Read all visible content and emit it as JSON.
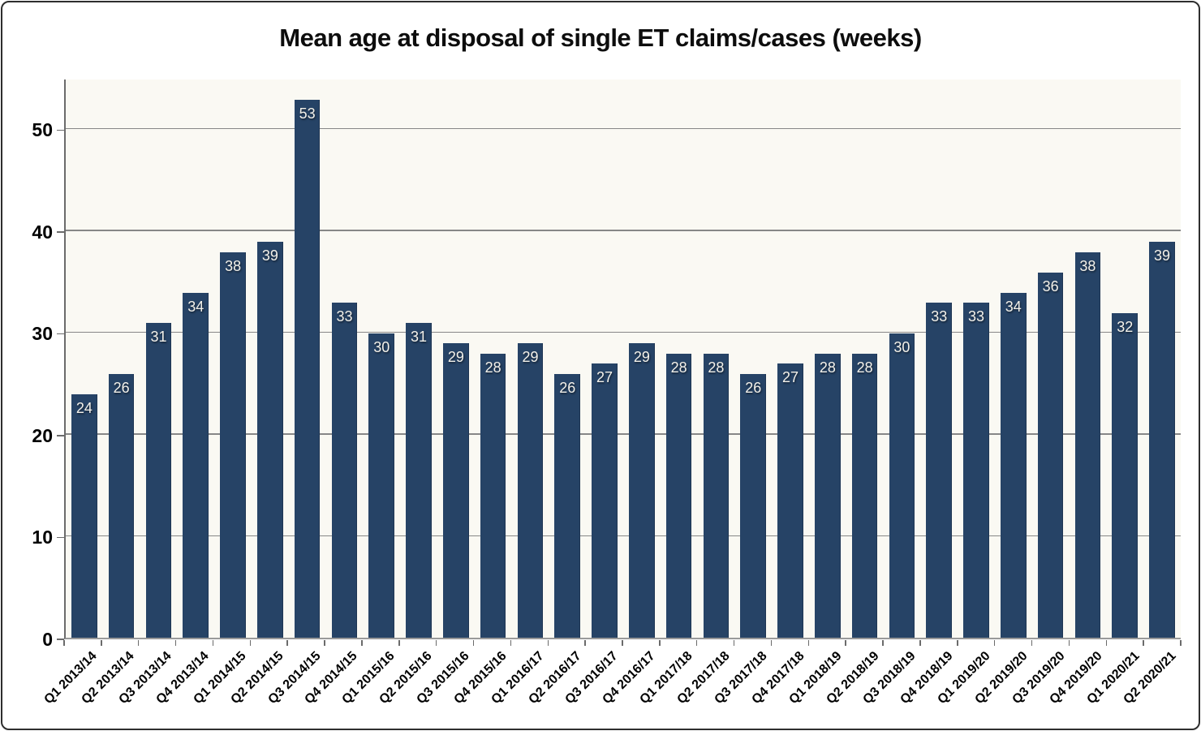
{
  "chart_data": {
    "type": "bar",
    "title": "Mean age at disposal of single ET claims/cases (weeks)",
    "categories": [
      "Q1 2013/14",
      "Q2 2013/14",
      "Q3 2013/14",
      "Q4 2013/14",
      "Q1 2014/15",
      "Q2 2014/15",
      "Q3 2014/15",
      "Q4 2014/15",
      "Q1 2015/16",
      "Q2 2015/16",
      "Q3 2015/16",
      "Q4 2015/16",
      "Q1 2016/17",
      "Q2 2016/17",
      "Q3 2016/17",
      "Q4 2016/17",
      "Q1 2017/18",
      "Q2 2017/18",
      "Q3 2017/18",
      "Q4 2017/18",
      "Q1 2018/19",
      "Q2 2018/19",
      "Q3 2018/19",
      "Q4 2018/19",
      "Q1 2019/20",
      "Q2 2019/20",
      "Q3 2019/20",
      "Q4 2019/20",
      "Q1 2020/21",
      "Q2 2020/21"
    ],
    "values": [
      24,
      26,
      31,
      34,
      38,
      39,
      53,
      33,
      30,
      31,
      29,
      28,
      29,
      26,
      27,
      29,
      28,
      28,
      26,
      27,
      28,
      28,
      30,
      33,
      33,
      34,
      36,
      38,
      32,
      39
    ],
    "xlabel": "",
    "ylabel": "",
    "ylim": [
      0,
      55
    ],
    "yticks": [
      0,
      10,
      20,
      30,
      40,
      50
    ],
    "grid": "horizontal",
    "legend": "none",
    "data_labels": "inside-end",
    "colors": {
      "bar": "#264366",
      "plot_background": "#faf9f3",
      "gridline": "#878787",
      "value_label": "#f3f1ea",
      "axis_text": "#000000",
      "frame_border": "#2e2e2e"
    }
  }
}
